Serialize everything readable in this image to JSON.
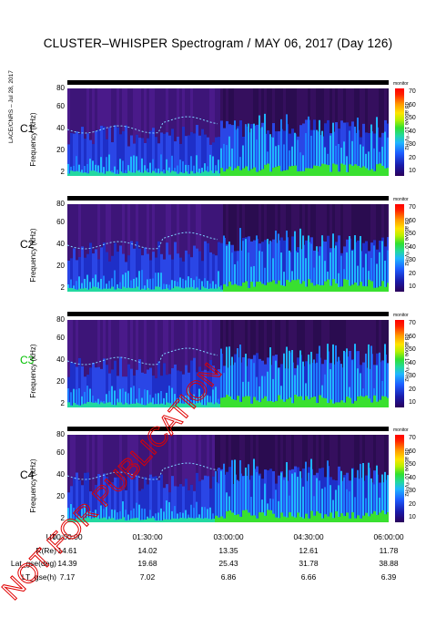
{
  "title": "CLUSTER–WHISPER Spectrogram / MAY 06, 2017 (Day 126)",
  "side_note": "LACE/CNRS – Jul 28, 2017",
  "watermark": "NOT FOR PUBLICATION",
  "colorbar": {
    "caption": "monitor",
    "unit": "dB above 10⁻⁸V²Hz",
    "ticks": [
      "70",
      "60",
      "50",
      "40",
      "30",
      "20",
      "10"
    ]
  },
  "chart_data": {
    "type": "heatmap",
    "ylabel": "Frequency (kHz)",
    "y_ticks": [
      "80",
      "60",
      "40",
      "20",
      "2"
    ],
    "ylim": [
      2,
      80
    ],
    "xlim": [
      "00:00:00",
      "06:00:00"
    ],
    "colorbar_range": [
      10,
      70
    ],
    "panels": [
      {
        "name": "C1",
        "color": "#000000"
      },
      {
        "name": "C2",
        "color": "#000000"
      },
      {
        "name": "C3",
        "color": "#00c000"
      },
      {
        "name": "C4",
        "color": "#000000"
      }
    ],
    "x_axis": {
      "rows": [
        {
          "label": "UT",
          "values": [
            "00:00:00",
            "01:30:00",
            "03:00:00",
            "04:30:00",
            "06:00:00"
          ]
        },
        {
          "label": "R(Re)",
          "values": [
            "14.61",
            "14.02",
            "13.35",
            "12.61",
            "11.78"
          ]
        },
        {
          "label": "Lat_gse(deg)",
          "values": [
            "14.39",
            "19.68",
            "25.43",
            "31.78",
            "38.88"
          ]
        },
        {
          "label": "LT_gse(h)",
          "values": [
            "7.17",
            "7.02",
            "6.86",
            "6.66",
            "6.39"
          ]
        }
      ]
    }
  }
}
